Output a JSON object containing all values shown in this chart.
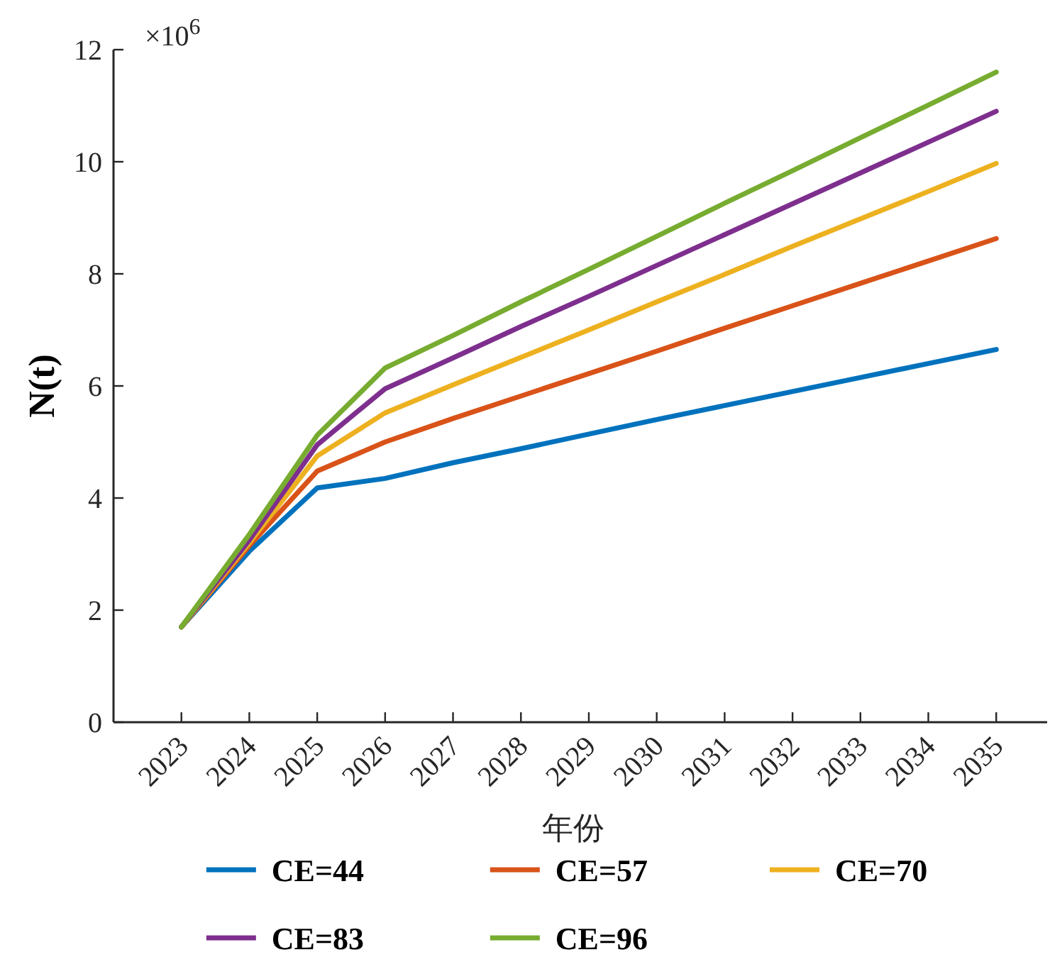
{
  "chart_data": {
    "type": "line",
    "xlabel": "年份",
    "ylabel": "N(t)",
    "annotations": [
      "×10$^{6}$"
    ],
    "categories": [
      "2023",
      "2024",
      "2025",
      "2026",
      "2027",
      "2028",
      "2029",
      "2030",
      "2031",
      "2032",
      "2033",
      "2034",
      "2035"
    ],
    "ylim": [
      0,
      12
    ],
    "yticks": [
      0,
      2,
      4,
      6,
      8,
      10,
      12
    ],
    "legend": "bottom",
    "series": [
      {
        "name": "CE=44",
        "color": "#0072bd",
        "values": [
          1.7,
          3.05,
          4.18,
          4.35,
          4.63,
          4.88,
          5.14,
          5.4,
          5.65,
          5.9,
          6.15,
          6.4,
          6.65
        ]
      },
      {
        "name": "CE=57",
        "color": "#d95319",
        "values": [
          1.7,
          3.15,
          4.48,
          5.0,
          5.42,
          5.82,
          6.22,
          6.62,
          7.03,
          7.43,
          7.83,
          8.23,
          8.63
        ]
      },
      {
        "name": "CE=70",
        "color": "#edb120",
        "values": [
          1.7,
          3.2,
          4.75,
          5.52,
          6.02,
          6.51,
          7.0,
          7.5,
          7.99,
          8.49,
          8.98,
          9.47,
          9.97
        ]
      },
      {
        "name": "CE=83",
        "color": "#7e2f8e",
        "values": [
          1.7,
          3.25,
          4.95,
          5.95,
          6.5,
          7.06,
          7.6,
          8.15,
          8.7,
          9.25,
          9.8,
          10.35,
          10.9
        ]
      },
      {
        "name": "CE=96",
        "color": "#77ac30",
        "values": [
          1.7,
          3.35,
          5.12,
          6.32,
          6.9,
          7.5,
          8.08,
          8.67,
          9.26,
          9.84,
          10.43,
          11.01,
          11.6
        ]
      }
    ]
  }
}
